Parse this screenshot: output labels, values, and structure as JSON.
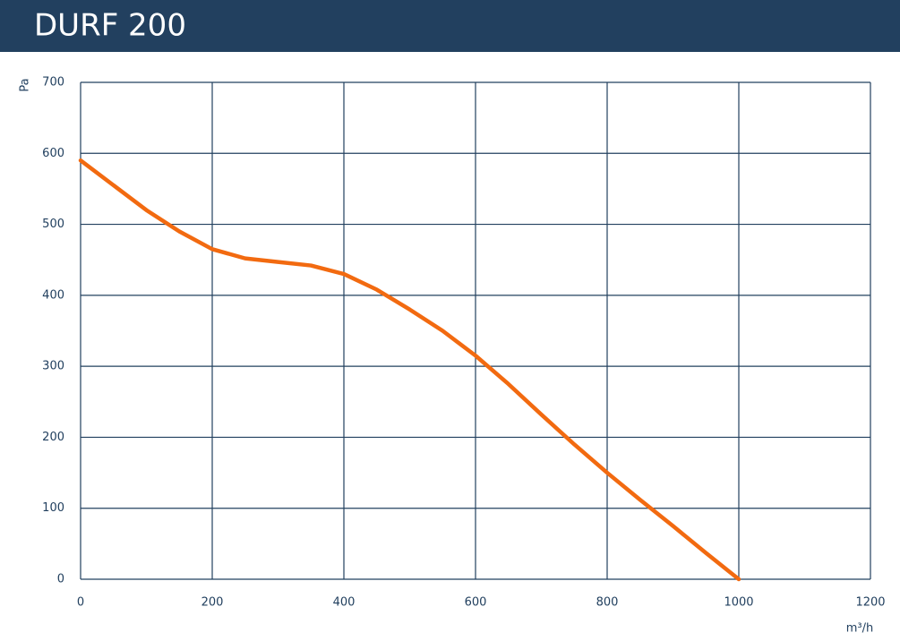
{
  "chart_data": {
    "type": "line",
    "title": "DURF 200",
    "x_label": "m³/h",
    "y_label": "Pa",
    "x": [
      0,
      50,
      100,
      150,
      200,
      250,
      300,
      350,
      400,
      450,
      500,
      550,
      600,
      650,
      700,
      750,
      800,
      850,
      900,
      950,
      1000
    ],
    "series": [
      {
        "name": "DURF 200",
        "color": "#f26a10",
        "values": [
          590,
          555,
          520,
          490,
          465,
          452,
          447,
          442,
          430,
          408,
          380,
          350,
          315,
          275,
          232,
          190,
          150,
          112,
          75,
          37,
          0
        ]
      }
    ],
    "xlim": [
      0,
      1200
    ],
    "xticks": [
      0,
      200,
      400,
      600,
      800,
      1000,
      1200
    ],
    "ylim": [
      0,
      700
    ],
    "yticks": [
      0,
      100,
      200,
      300,
      400,
      500,
      600,
      700
    ],
    "grid": true
  }
}
